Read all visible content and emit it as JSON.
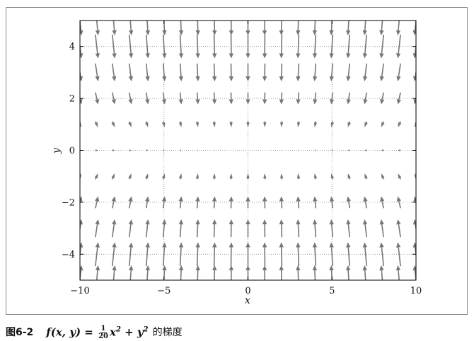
{
  "chart_data": {
    "type": "quiver",
    "function": "f(x,y) = (1/20) x^2 + y^2",
    "vector_field": "gradient",
    "gradient": {
      "dfdx_coef": 0.1,
      "dfdy_coef": 2
    },
    "arrow_direction": "negative gradient (points toward origin)",
    "x_grid": [
      -10,
      -9,
      -8,
      -7,
      -6,
      -5,
      -4,
      -3,
      -2,
      -1,
      0,
      1,
      2,
      3,
      4,
      5,
      6,
      7,
      8,
      9,
      10
    ],
    "y_grid": [
      -5,
      -4,
      -3,
      -2,
      -1,
      0,
      1,
      2,
      3,
      4,
      5
    ],
    "xlim": [
      -10,
      10
    ],
    "ylim": [
      -5,
      5
    ],
    "xticks": [
      "−10",
      "−5",
      "0",
      "5",
      "10"
    ],
    "yticks": [
      "−4",
      "−2",
      "0",
      "2",
      "4"
    ],
    "xtick_values": [
      -10,
      -5,
      0,
      5,
      10
    ],
    "ytick_values": [
      -4,
      -2,
      0,
      2,
      4
    ],
    "xlabel": "x",
    "ylabel": "y",
    "grid": true,
    "arrow_color": "#777777",
    "grid_color": "#888888"
  },
  "caption": {
    "figure_number": "图6-2",
    "formula_prefix": "f(x, y) =",
    "frac_num": "1",
    "frac_den": "20",
    "formula_x": "x",
    "formula_plus": " + y",
    "sup2": "2",
    "suffix": "的梯度"
  }
}
